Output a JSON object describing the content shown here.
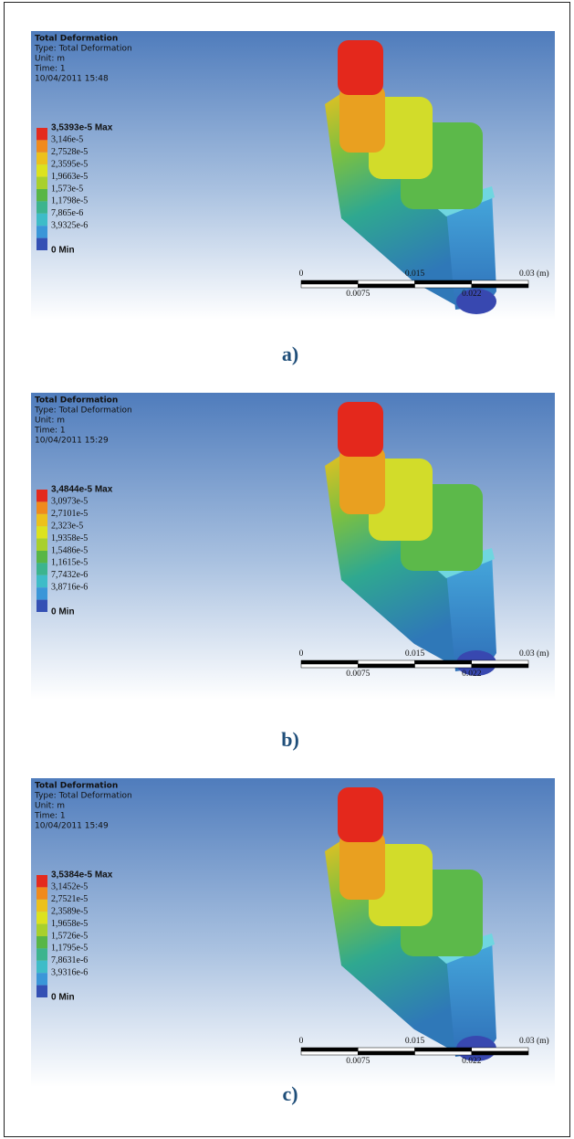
{
  "panels": [
    {
      "title": "Total Deformation",
      "type": "Type: Total Deformation",
      "unit": "Unit: m",
      "time": "Time: 1",
      "date": "10/04/2011 15:48",
      "legend": [
        "3,5393e-5 Max",
        "3,146e-5",
        "2,7528e-5",
        "2,3595e-5",
        "1,9663e-5",
        "1,573e-5",
        "1,1798e-5",
        "7,865e-6",
        "3,9325e-6",
        "0 Min"
      ],
      "scale": {
        "start": "0",
        "mid": "0.015",
        "end": "0.03 (m)",
        "quarter": "0.0075",
        "three_quarter": "0.022"
      },
      "caption": "a)"
    },
    {
      "title": "Total Deformation",
      "type": "Type: Total Deformation",
      "unit": "Unit: m",
      "time": "Time: 1",
      "date": "10/04/2011 15:29",
      "legend": [
        "3,4844e-5 Max",
        "3,0973e-5",
        "2,7101e-5",
        "2,323e-5",
        "1,9358e-5",
        "1,5486e-5",
        "1,1615e-5",
        "7,7432e-6",
        "3,8716e-6",
        "0 Min"
      ],
      "scale": {
        "start": "0",
        "mid": "0.015",
        "end": "0.03 (m)",
        "quarter": "0.0075",
        "three_quarter": "0.022"
      },
      "caption": "b)"
    },
    {
      "title": "Total Deformation",
      "type": "Type: Total Deformation",
      "unit": "Unit: m",
      "time": "Time: 1",
      "date": "10/04/2011 15:49",
      "legend": [
        "3,5384e-5 Max",
        "3,1452e-5",
        "2,7521e-5",
        "2,3589e-5",
        "1,9658e-5",
        "1,5726e-5",
        "1,1795e-5",
        "7,8631e-6",
        "3,9316e-6",
        "0 Min"
      ],
      "scale": {
        "start": "0",
        "mid": "0.015",
        "end": "0.03 (m)",
        "quarter": "0.0075",
        "three_quarter": "0.022"
      },
      "caption": "c)"
    }
  ]
}
